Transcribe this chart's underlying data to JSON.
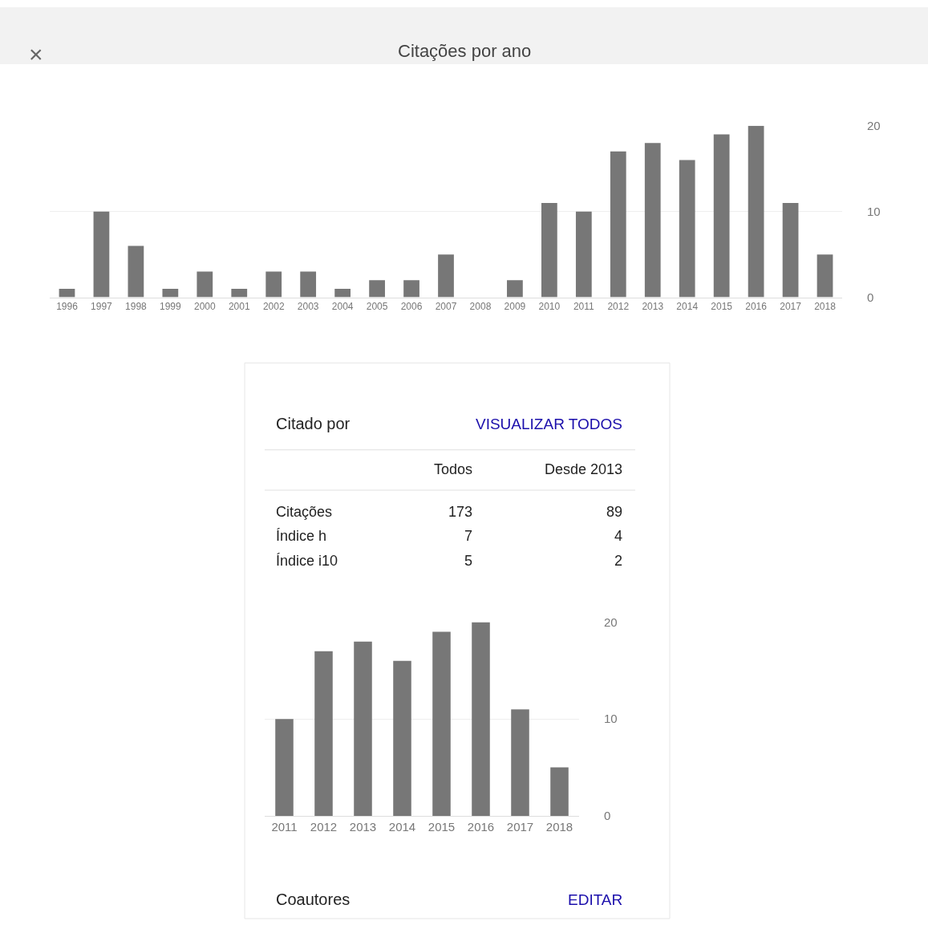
{
  "chart_data": [
    {
      "type": "bar",
      "title": "Citações por ano",
      "annotations": [
        "×"
      ],
      "categories": [
        "1996",
        "1997",
        "1998",
        "1999",
        "2000",
        "2001",
        "2002",
        "2003",
        "2004",
        "2005",
        "2006",
        "2007",
        "2008",
        "2009",
        "2010",
        "2011",
        "2012",
        "2013",
        "2014",
        "2015",
        "2016",
        "2017",
        "2018"
      ],
      "values": [
        1,
        10,
        6,
        1,
        3,
        1,
        3,
        3,
        1,
        2,
        2,
        5,
        0,
        2,
        11,
        10,
        17,
        18,
        16,
        19,
        20,
        11,
        5
      ],
      "color": "#777777",
      "ylim": [
        0,
        20
      ],
      "yticks": [
        0,
        10,
        20
      ],
      "grid": "y"
    },
    {
      "type": "other",
      "annotations": [
        "Citado por",
        "VISUALIZAR TODOS",
        "Todos",
        "Desde 2013",
        "Citações",
        "173",
        "89",
        "Índice h",
        "7",
        "4",
        "Índice i10",
        "5",
        "2",
        "Coautores",
        "EDITAR"
      ]
    },
    {
      "type": "bar",
      "categories": [
        "2011",
        "2012",
        "2013",
        "2014",
        "2015",
        "2016",
        "2017",
        "2018"
      ],
      "values": [
        10,
        17,
        18,
        16,
        19,
        20,
        11,
        5
      ],
      "color": "#777777",
      "ylim": [
        0,
        20
      ],
      "yticks": [
        0,
        10,
        20
      ],
      "grid": "y"
    }
  ]
}
